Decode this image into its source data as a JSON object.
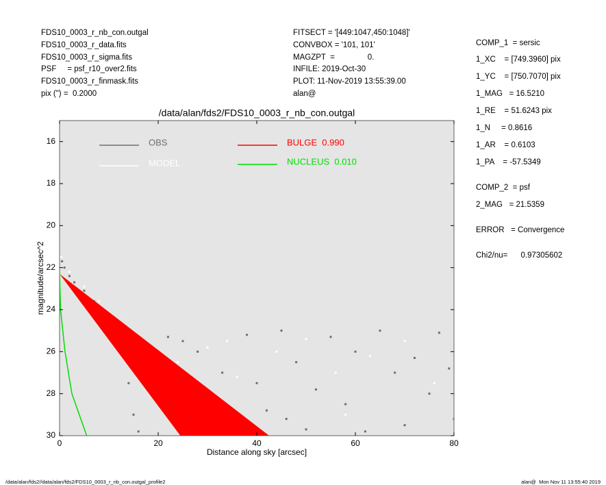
{
  "header": {
    "left": [
      "FDS10_0003_r_nb_con.outgal",
      "FDS10_0003_r_data.fits",
      "FDS10_0003_r_sigma.fits",
      "PSF     = psf_r10_over2.fits",
      "FDS10_0003_r_finmask.fits",
      "pix (\") =  0.2000"
    ],
    "middle": [
      "FITSECT = '[449:1047,450:1048]'",
      "CONVBOX = '101, 101'",
      "MAGZPT  =               0.",
      "INFILE: 2019-Oct-30",
      "PLOT: 11-Nov-2019 13:55:39.00",
      "alan@"
    ],
    "right": [
      "COMP_1  = sersic",
      "1_XC    = [749.3960] pix",
      "1_YC    = [750.7070] pix",
      "1_MAG   = 16.5210",
      "1_RE    = 51.6243 pix",
      "1_N     = 0.8616",
      "1_AR    = 0.6103",
      "1_PA    = -57.5349",
      "COMP_2  = psf",
      "2_MAG   = 21.5359",
      "ERROR   = Convergence",
      "Chi2/nu=      0.97305602"
    ]
  },
  "footer": {
    "left": "/data/alan/fds2//data/alan/fds2/FDS10_0003_r_nb_con.outgal_profile2",
    "right": "alan@  Mon Nov 11 13:55:40 2019"
  },
  "chart_data": {
    "type": "scatter",
    "title": "/data/alan/fds2/FDS10_0003_r_nb_con.outgal",
    "x_label": "Distance along sky [arcsec]",
    "y_label": "magnitude/arcsec^2",
    "xlim": [
      0,
      80
    ],
    "ylim": [
      30,
      15
    ],
    "xticks": [
      0,
      20,
      40,
      60,
      80
    ],
    "yticks": [
      16,
      18,
      20,
      22,
      24,
      26,
      28,
      30
    ],
    "background": "#e5e5e5",
    "series": [
      {
        "name": "OBS",
        "kind": "points",
        "color": "#6e6e6e",
        "x": [
          0.5,
          1,
          2,
          3,
          5,
          7,
          9,
          11,
          13,
          14,
          15,
          16,
          18,
          20,
          22,
          25,
          28,
          30,
          35,
          38,
          40,
          42,
          45,
          48,
          50,
          52,
          55,
          58,
          60,
          62,
          65,
          68,
          70,
          72,
          75,
          77,
          79,
          80,
          33,
          46
        ],
        "values": [
          21.7,
          22,
          22.4,
          22.7,
          23.1,
          23.6,
          24.2,
          25,
          26.2,
          27.5,
          29,
          29.8,
          27,
          26,
          25.3,
          25.5,
          26,
          29.5,
          29.8,
          25.2,
          27.5,
          28.8,
          25,
          26.5,
          29.7,
          27.8,
          25.3,
          28.5,
          26,
          29.8,
          25,
          27,
          29.5,
          26.3,
          28,
          25.1,
          26.8,
          29.2,
          27,
          29.2
        ]
      },
      {
        "name": "MODEL",
        "kind": "points",
        "color": "#ffffff",
        "x": [
          0.3,
          2,
          5,
          8,
          12,
          17,
          20,
          24,
          30,
          36,
          44,
          50,
          56,
          63,
          70,
          76,
          34,
          58
        ],
        "values": [
          21.5,
          22.2,
          22.9,
          23.6,
          24.8,
          26.5,
          28,
          26.5,
          25.8,
          27.2,
          26,
          25.4,
          27,
          26.2,
          25.5,
          27.5,
          25.5,
          29
        ]
      },
      {
        "name": "BULGE  0.990",
        "kind": "band",
        "color": "#ff0000",
        "x": [
          0,
          24.5,
          42.5
        ],
        "values": [
          22.3,
          30,
          30
        ]
      },
      {
        "name": "NUCLEUS  0.010",
        "kind": "line",
        "color": "#00dd00",
        "x": [
          0,
          0.2,
          1.1,
          2.5,
          5.5
        ],
        "values": [
          22.3,
          24,
          26,
          28,
          30
        ]
      }
    ]
  }
}
